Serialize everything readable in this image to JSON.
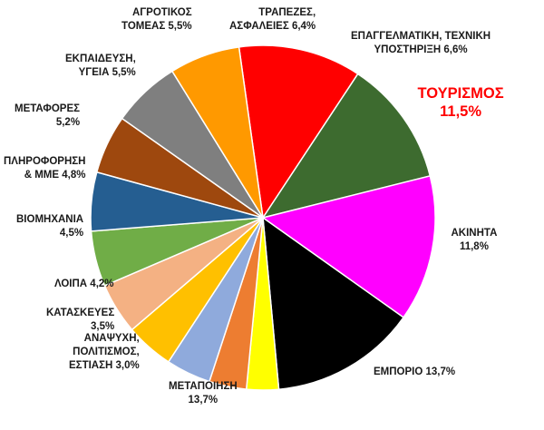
{
  "chart_data": {
    "type": "pie",
    "title": "",
    "slices": [
      {
        "label": "ΤΟΥΡΙΣΜΟΣ",
        "value": 11.5,
        "display": "ΤΟΥΡΙΣΜΟΣ\n11,5%",
        "color": "#ff0000"
      },
      {
        "label": "ΑΚΙΝΗΤΑ",
        "value": 11.8,
        "display": "ΑΚΙΝΗΤΑ\n11,8%",
        "color": "#3d6b2f"
      },
      {
        "label": "ΕΜΠΟΡΙΟ",
        "value": 13.7,
        "display": "ΕΜΠΟΡΙΟ 13,7%",
        "color": "#ff00ff"
      },
      {
        "label": "ΜΕΤΑΠΟΙΗΣΗ",
        "value": 13.7,
        "display": "ΜΕΤΑΠΟΙΗΣΗ\n13,7%",
        "color": "#000000"
      },
      {
        "label": "ΑΝΑΨΥΧΗ, ΠΟΛΙΤΙΣΜΟΣ, ΕΣΤΙΑΣΗ",
        "value": 3.0,
        "display": "ΑΝΑΨΥΧΗ,\nΠΟΛΙΤΙΣΜΟΣ,\nΕΣΤΙΑΣΗ 3,0%",
        "color": "#ffff00"
      },
      {
        "label": "ΚΑΤΑΣΚΕΥΕΣ",
        "value": 3.5,
        "display": "ΚΑΤΑΣΚΕΥΕΣ\n3,5%",
        "color": "#ed7d31"
      },
      {
        "label": "ΛΟΙΠΑ",
        "value": 4.2,
        "display": "ΛΟΙΠΑ 4,2%",
        "color": "#8faadc"
      },
      {
        "label": "ΒΙΟΜΗΧΑΝΙΑ",
        "value": 4.5,
        "display": "ΒΙΟΜΗΧΑΝΙΑ\n4,5%",
        "color": "#ffc000"
      },
      {
        "label": "ΠΛΗΡΟΦΟΡΗΣΗ & ΜΜΕ",
        "value": 4.8,
        "display": "ΠΛΗΡΟΦΟΡΗΣΗ\n& ΜΜΕ 4,8%",
        "color": "#f4b183"
      },
      {
        "label": "ΜΕΤΑΦΟΡΕΣ",
        "value": 5.2,
        "display": "ΜΕΤΑΦΟΡΕΣ\n5,2%",
        "color": "#70ad47"
      },
      {
        "label": "ΕΚΠΑΙΔΕΥΣΗ, ΥΓΕΙΑ",
        "value": 5.5,
        "display": "ΕΚΠΑΙΔΕΥΣΗ,\nΥΓΕΙΑ 5,5%",
        "color": "#255e91"
      },
      {
        "label": "ΑΓΡΟΤΙΚΟΣ ΤΟΜΕΑΣ",
        "value": 5.5,
        "display": "ΑΓΡΟΤΙΚΟΣ\nΤΟΜΕΑΣ 5,5%",
        "color": "#9e480e"
      },
      {
        "label": "ΤΡΑΠΕΖΕΣ, ΑΣΦΑΛΕΙΕΣ",
        "value": 6.4,
        "display": "ΤΡΑΠΕΖΕΣ,\nΑΣΦΑΛΕΙΕΣ 6,4%",
        "color": "#7f7f7f"
      },
      {
        "label": "ΕΠΑΓΓΕΛΜΑΤΙΚΗ, ΤΕΧΝΙΚΗ ΥΠΟΣΤΗΡΙΞΗ",
        "value": 6.6,
        "display": "ΕΠΑΓΓΕΛΜΑΤΙΚΗ, ΤΕΧΝΙΚΗ\nΥΠΟΣΤΗΡΙΞΗ 6,6%",
        "color": "#ff9900"
      }
    ]
  }
}
